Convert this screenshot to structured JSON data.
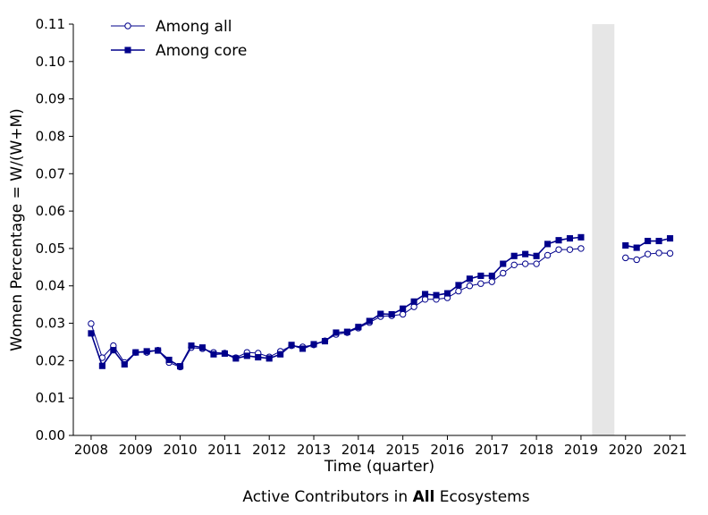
{
  "chart_data": {
    "type": "line",
    "xlabel": "Time (quarter)",
    "ylabel": "Women Percentage = W/(W+M)",
    "xlim": [
      2007.6,
      2021.35
    ],
    "ylim": [
      0,
      0.11
    ],
    "x_ticks": [
      2008,
      2009,
      2010,
      2011,
      2012,
      2013,
      2014,
      2015,
      2016,
      2017,
      2018,
      2019,
      2020,
      2021
    ],
    "x_tick_labels": [
      "2008",
      "2009",
      "2010",
      "2011",
      "2012",
      "2013",
      "2014",
      "2015",
      "2016",
      "2017",
      "2018",
      "2019",
      "2020",
      "2021"
    ],
    "y_ticks": [
      0,
      0.01,
      0.02,
      0.03,
      0.04,
      0.05,
      0.06,
      0.07,
      0.08,
      0.09,
      0.1,
      0.11
    ],
    "y_tick_labels": [
      "0.00",
      "0.01",
      "0.02",
      "0.03",
      "0.04",
      "0.05",
      "0.06",
      "0.07",
      "0.08",
      "0.09",
      "0.10",
      "0.11"
    ],
    "shaded_region": [
      2019.25,
      2019.75
    ],
    "legend_position": "top-left",
    "grid": false,
    "line_color": "#00008b",
    "shade_color": "#e6e6e6",
    "series": [
      {
        "name": "Among all",
        "marker": "open-circle",
        "segments": [
          {
            "x": [
              2008.0,
              2008.25,
              2008.5,
              2008.75,
              2009.0,
              2009.25,
              2009.5,
              2009.75,
              2010.0,
              2010.25,
              2010.5,
              2010.75,
              2011.0,
              2011.25,
              2011.5,
              2011.75,
              2012.0,
              2012.25,
              2012.5,
              2012.75,
              2013.0,
              2013.25,
              2013.5,
              2013.75,
              2014.0,
              2014.25,
              2014.5,
              2014.75,
              2015.0,
              2015.25,
              2015.5,
              2015.75,
              2016.0,
              2016.25,
              2016.5,
              2016.75,
              2017.0,
              2017.25,
              2017.5,
              2017.75,
              2018.0,
              2018.25,
              2018.5,
              2018.75,
              2019.0
            ],
            "y": [
              0.0299,
              0.0208,
              0.024,
              0.0195,
              0.0222,
              0.0222,
              0.0228,
              0.0195,
              0.0183,
              0.0235,
              0.0232,
              0.0222,
              0.022,
              0.0208,
              0.0222,
              0.022,
              0.021,
              0.0225,
              0.024,
              0.0237,
              0.0242,
              0.0253,
              0.027,
              0.0275,
              0.0287,
              0.0302,
              0.0318,
              0.032,
              0.0324,
              0.0344,
              0.0364,
              0.0364,
              0.0368,
              0.0386,
              0.04,
              0.0406,
              0.0411,
              0.0434,
              0.0456,
              0.0459,
              0.0459,
              0.0482,
              0.0497,
              0.0497,
              0.05
            ]
          },
          {
            "x": [
              2020.0,
              2020.25,
              2020.5,
              2020.75,
              2021.0
            ],
            "y": [
              0.0475,
              0.047,
              0.0485,
              0.0488,
              0.0487
            ]
          }
        ]
      },
      {
        "name": "Among core",
        "marker": "filled-square",
        "segments": [
          {
            "x": [
              2008.0,
              2008.25,
              2008.5,
              2008.75,
              2009.0,
              2009.25,
              2009.5,
              2009.75,
              2010.0,
              2010.25,
              2010.5,
              2010.75,
              2011.0,
              2011.25,
              2011.5,
              2011.75,
              2012.0,
              2012.25,
              2012.5,
              2012.75,
              2013.0,
              2013.25,
              2013.5,
              2013.75,
              2014.0,
              2014.25,
              2014.5,
              2014.75,
              2015.0,
              2015.25,
              2015.5,
              2015.75,
              2016.0,
              2016.25,
              2016.5,
              2016.75,
              2017.0,
              2017.25,
              2017.5,
              2017.75,
              2018.0,
              2018.25,
              2018.5,
              2018.75,
              2019.0
            ],
            "y": [
              0.0273,
              0.0186,
              0.0228,
              0.019,
              0.0222,
              0.0225,
              0.0227,
              0.0202,
              0.0185,
              0.024,
              0.0235,
              0.0217,
              0.0219,
              0.0206,
              0.0213,
              0.0209,
              0.0206,
              0.0217,
              0.0242,
              0.0232,
              0.0244,
              0.0252,
              0.0275,
              0.0277,
              0.029,
              0.0306,
              0.0325,
              0.0324,
              0.0339,
              0.0358,
              0.0378,
              0.0375,
              0.038,
              0.0402,
              0.0419,
              0.0427,
              0.0427,
              0.0459,
              0.048,
              0.0485,
              0.048,
              0.0512,
              0.0522,
              0.0527,
              0.053
            ]
          },
          {
            "x": [
              2020.0,
              2020.25,
              2020.5,
              2020.75,
              2021.0
            ],
            "y": [
              0.0508,
              0.0502,
              0.052,
              0.052,
              0.0527
            ]
          }
        ]
      }
    ]
  },
  "caption": {
    "prefix": "Active Contributors in ",
    "bold": "All",
    "suffix": " Ecosystems"
  }
}
